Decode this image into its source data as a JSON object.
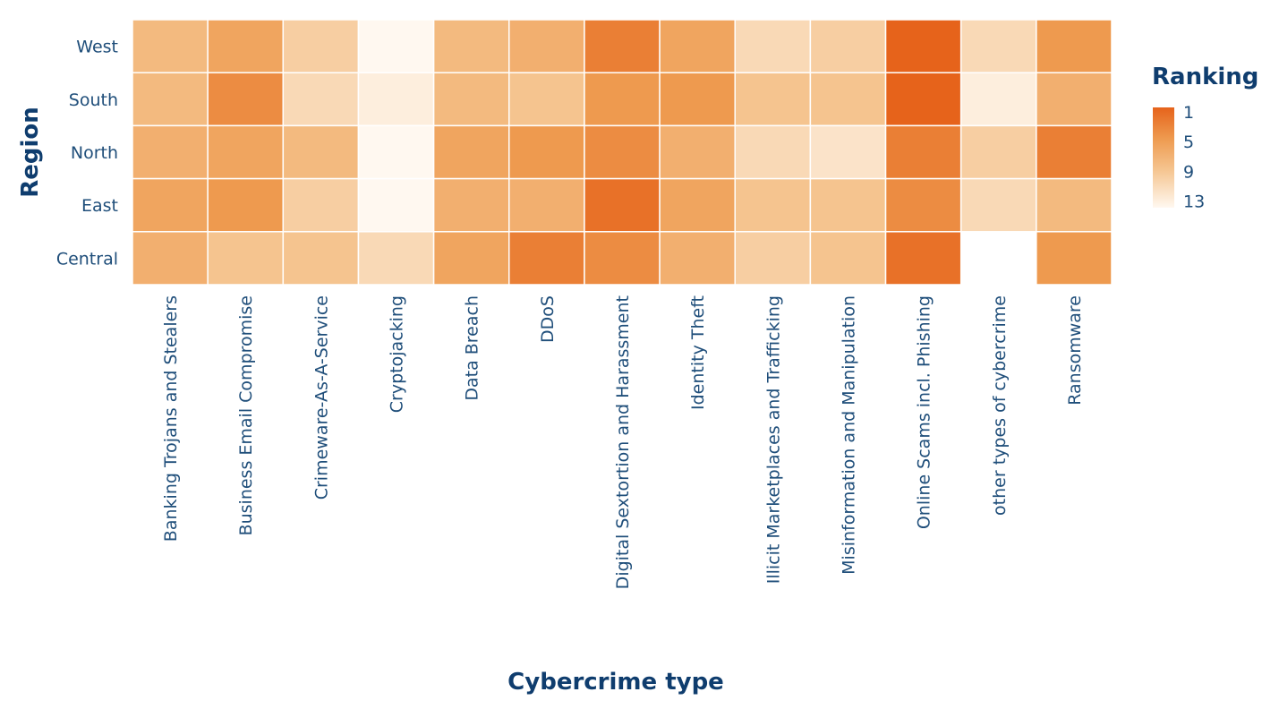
{
  "chart_data": {
    "type": "heatmap",
    "xlabel": "Cybercrime type",
    "ylabel": "Region",
    "x_categories": [
      "Banking Trojans and Stealers",
      "Business Email Compromise",
      "Crimeware-As-A-Service",
      "Cryptojacking",
      "Data Breach",
      "DDoS",
      "Digital Sextortion and Harassment",
      "Identity Theft",
      "Illicit Marketplaces and Trafficking",
      "Misinformation and Manipulation",
      "Online Scams incl. Phishing",
      "other types of cybercrime",
      "Ransomware"
    ],
    "y_categories": [
      "West",
      "South",
      "North",
      "East",
      "Central"
    ],
    "values": [
      [
        8,
        6,
        10,
        14,
        8,
        7,
        3,
        6,
        11,
        10,
        1,
        11,
        5
      ],
      [
        8,
        4,
        11,
        13,
        8,
        9,
        5,
        5,
        9,
        9,
        1,
        13,
        7
      ],
      [
        7,
        6,
        8,
        14,
        6,
        5,
        4,
        7,
        11,
        12,
        3,
        10,
        3
      ],
      [
        6,
        5,
        10,
        14,
        7,
        7,
        2,
        6,
        9,
        9,
        4,
        11,
        8
      ],
      [
        7,
        9,
        9,
        11,
        6,
        3,
        4,
        7,
        10,
        9,
        2,
        null,
        5
      ]
    ],
    "legend": {
      "title": "Ranking",
      "ticks": [
        1,
        5,
        9,
        13
      ],
      "range": [
        1,
        14
      ],
      "placement": "right"
    },
    "colors": {
      "low_rank": "#e6631b",
      "high_rank": "#fff8f0",
      "text": "#1f4e7a"
    }
  }
}
